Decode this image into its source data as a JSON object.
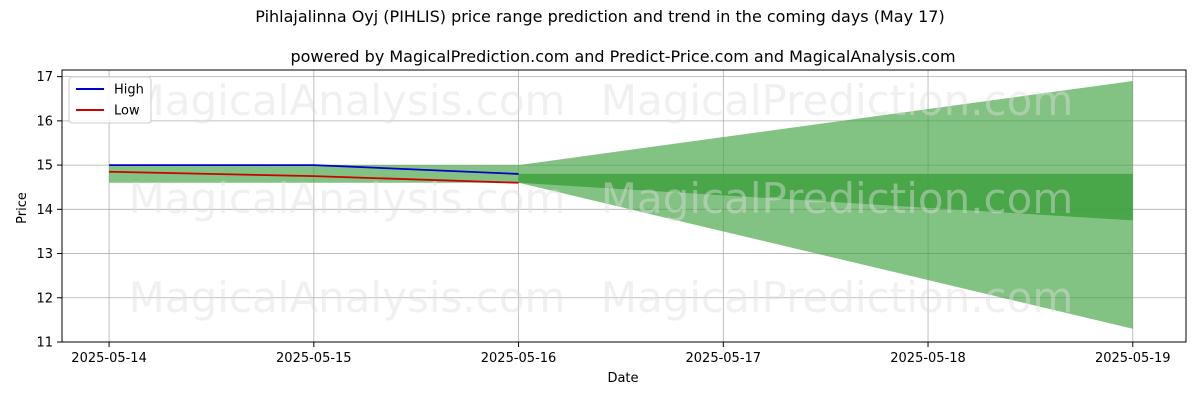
{
  "chart_data": {
    "type": "line",
    "title": "Pihlajalinna Oyj (PIHLIS) price range prediction and trend in the coming days (May 17)",
    "subtitle": "powered by MagicalPrediction.com and Predict-Price.com and MagicalAnalysis.com",
    "xlabel": "Date",
    "ylabel": "Price",
    "x": [
      "2025-05-14",
      "2025-05-15",
      "2025-05-16",
      "2025-05-17",
      "2025-05-18",
      "2025-05-19"
    ],
    "xlim": [
      "2025-05-13.77",
      "2025-05-19.26"
    ],
    "ylim": [
      11,
      17.15
    ],
    "yticks": [
      11,
      12,
      13,
      14,
      15,
      16,
      17
    ],
    "grid": true,
    "legend_position": "top-left",
    "series": [
      {
        "name": "High",
        "color": "#0000cc",
        "x": [
          "2025-05-14",
          "2025-05-15",
          "2025-05-16"
        ],
        "values": [
          15.0,
          15.0,
          14.8
        ]
      },
      {
        "name": "Low",
        "color": "#cc0000",
        "x": [
          "2025-05-14",
          "2025-05-15",
          "2025-05-16"
        ],
        "values": [
          14.85,
          14.75,
          14.6
        ]
      }
    ],
    "bands": [
      {
        "color": "#3fa13f",
        "opacity": 0.65,
        "x": [
          "2025-05-14",
          "2025-05-16"
        ],
        "upper": [
          15.0,
          15.0
        ],
        "lower": [
          14.6,
          14.6
        ]
      },
      {
        "color": "#3fa13f",
        "opacity": 0.65,
        "x": [
          "2025-05-16",
          "2025-05-19"
        ],
        "upper": [
          15.0,
          16.9
        ],
        "lower": [
          14.6,
          11.3
        ]
      },
      {
        "color": "#3fa13f",
        "opacity": 0.85,
        "x": [
          "2025-05-16",
          "2025-05-19"
        ],
        "upper": [
          14.8,
          14.8
        ],
        "lower": [
          14.6,
          13.75
        ]
      }
    ],
    "watermarks": [
      "MagicalAnalysis.com",
      "MagicalPrediction.com"
    ]
  }
}
